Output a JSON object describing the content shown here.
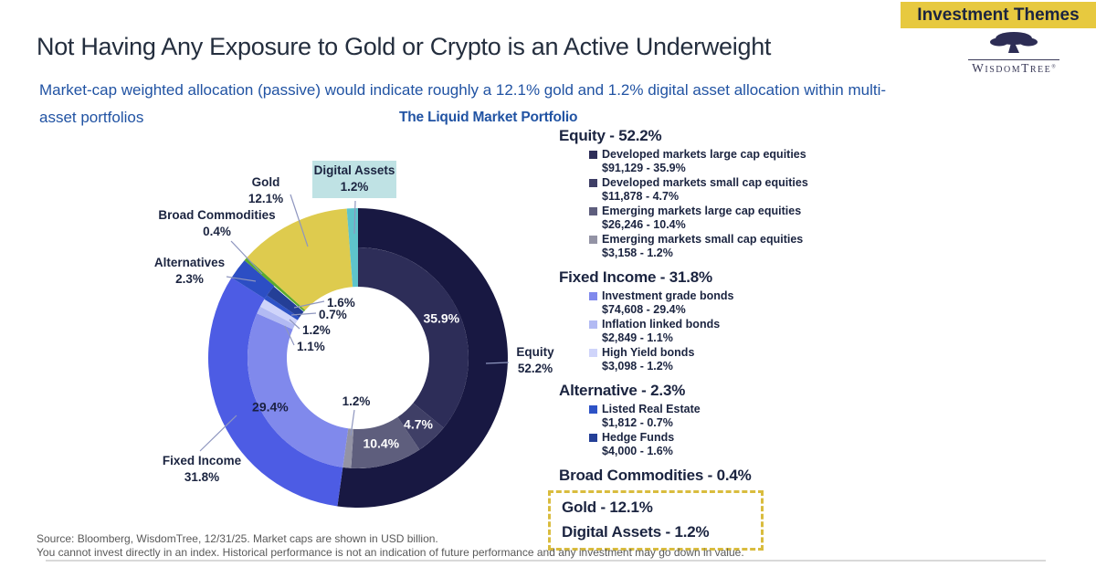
{
  "banner": {
    "label": "Investment Themes"
  },
  "logo": {
    "w": "W",
    "isdom": "ISDOM",
    "t": "T",
    "ree": "REE",
    "reg": "®"
  },
  "title": "Not Having Any Exposure to Gold or Crypto is an Active Underweight",
  "subtitle": {
    "line1": "Market-cap weighted allocation (passive) would indicate roughly a 12.1% gold and 1.2% digital asset allocation within multi-",
    "line2": "asset portfolios"
  },
  "chart_data": {
    "type": "sunburst-donut",
    "title": "The Liquid Market Portfolio",
    "units": "USD billion",
    "legend_position": "right",
    "categories": [
      {
        "name": "Equity",
        "pct": 52.2,
        "color": "#181842",
        "span": "outer"
      },
      {
        "name": "Fixed Income",
        "pct": 31.8,
        "color": "#4d5ce4",
        "span": "outer"
      },
      {
        "name": "Alternatives",
        "pct": 2.3,
        "color": "#2c4ec4",
        "span": "outer"
      },
      {
        "name": "Broad Commodities",
        "pct": 0.4,
        "color": "#5baa2d",
        "span": "full"
      },
      {
        "name": "Gold",
        "pct": 12.1,
        "color": "#decb4e",
        "span": "full"
      },
      {
        "name": "Digital Assets",
        "pct": 1.2,
        "color": "#5ec4cb",
        "span": "full"
      }
    ],
    "subcategories": [
      {
        "name": "Developed markets large cap equities",
        "market_cap": "$91,129",
        "pct": 35.9,
        "color": "#2d2d58",
        "label": {
          "text": "35.9%",
          "color": "#ffffff",
          "r": 101
        }
      },
      {
        "name": "Developed markets small cap equities",
        "market_cap": "$11,878",
        "pct": 4.7,
        "color": "#3f3f66",
        "label": {
          "text": "4.7%",
          "color": "#ffffff",
          "r": 98
        }
      },
      {
        "name": "Emerging markets large cap equities",
        "market_cap": "$26,246",
        "pct": 10.4,
        "color": "#5e5e7d",
        "label": {
          "text": "10.4%",
          "color": "#ffffff",
          "r": 97
        }
      },
      {
        "name": "Emerging markets small cap equities",
        "market_cap": "$3,158",
        "pct": 1.2,
        "color": "#9393a5"
      },
      {
        "name": "Investment grade bonds",
        "market_cap": "$74,608",
        "pct": 29.4,
        "color": "#8089ec",
        "label": {
          "text": "29.4%",
          "color": "#1b2142",
          "r": 110
        }
      },
      {
        "name": "Inflation linked bonds",
        "market_cap": "$2,849",
        "pct": 1.1,
        "color": "#b2baf3"
      },
      {
        "name": "High Yield bonds",
        "market_cap": "$3,098",
        "pct": 1.2,
        "color": "#cfd4fa"
      },
      {
        "name": "Listed Real Estate",
        "market_cap": "$1,812",
        "pct": 0.7,
        "color": "#2d52c6"
      },
      {
        "name": "Hedge Funds",
        "market_cap": "$4,000",
        "pct": 1.6,
        "color": "#243f97"
      }
    ]
  },
  "annotations": [
    {
      "id": "gold-label",
      "lines": [
        "Gold",
        "12.1%"
      ]
    },
    {
      "id": "digital-assets-label",
      "lines": [
        "Digital Assets",
        "1.2%"
      ],
      "highlight": true
    },
    {
      "id": "broad-commodities-label",
      "lines": [
        "Broad Commodities",
        "0.4%"
      ]
    },
    {
      "id": "alternatives-label",
      "lines": [
        "Alternatives",
        "2.3%"
      ]
    },
    {
      "id": "equity-label",
      "lines": [
        "Equity",
        "52.2%"
      ]
    },
    {
      "id": "fixed-income-label",
      "lines": [
        "Fixed Income",
        "31.8%"
      ]
    },
    {
      "id": "hedge-funds-pct",
      "lines": [
        "1.6%"
      ]
    },
    {
      "id": "real-estate-pct",
      "lines": [
        "0.7%"
      ]
    },
    {
      "id": "high-yield-pct",
      "lines": [
        "1.2%"
      ]
    },
    {
      "id": "inflation-linked-pct",
      "lines": [
        "1.1%"
      ]
    },
    {
      "id": "emerging-small-pct",
      "lines": [
        "1.2%"
      ]
    }
  ],
  "legend": {
    "sections": [
      {
        "heading": "Equity - 52.2%",
        "item_indexes": [
          0,
          1,
          2,
          3
        ]
      },
      {
        "heading": "Fixed Income - 31.8%",
        "item_indexes": [
          4,
          5,
          6
        ]
      },
      {
        "heading": "Alternative - 2.3%",
        "item_indexes": [
          7,
          8
        ]
      },
      {
        "heading": "Broad Commodities - 0.4%",
        "item_indexes": []
      }
    ],
    "highlight": {
      "rows": [
        "Gold - 12.1%",
        "Digital Assets - 1.2%"
      ],
      "border_color": "#d9bc3e"
    }
  },
  "footer": {
    "line1": "Source: Bloomberg, WisdomTree, 12/31/25. Market caps are shown in USD billion.",
    "line2": "You cannot invest directly in an index. Historical performance is not an indication of future performance and any investment may go down in value."
  },
  "colors": {
    "banner_bg": "#e7c93f",
    "accent_blue": "#2153a3",
    "dark_navy": "#1b2440",
    "highlight_teal": "#bfe2e4",
    "leader_line": "#8e96bf"
  }
}
